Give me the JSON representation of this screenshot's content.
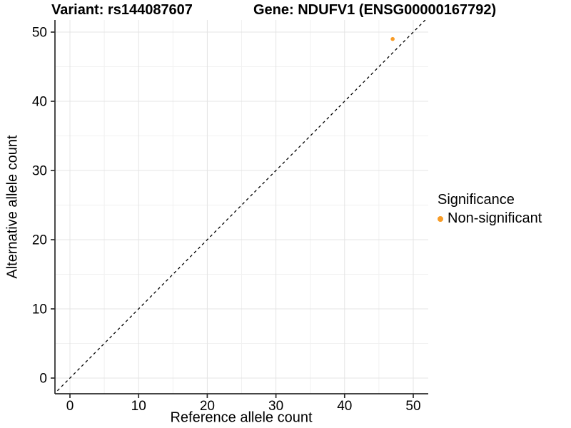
{
  "header": {
    "variant_title": "Variant: rs144087607",
    "gene_title": "Gene: NDUFV1 (ENSG00000167792)"
  },
  "chart_data": {
    "type": "scatter",
    "title": "Variant: rs144087607 — Gene: NDUFV1 (ENSG00000167792)",
    "xlabel": "Reference allele count",
    "ylabel": "Alternative allele count",
    "xlim": [
      -2.2,
      52.3
    ],
    "ylim": [
      -2.3,
      51.8
    ],
    "x_ticks": [
      0,
      10,
      20,
      30,
      40,
      50
    ],
    "y_ticks": [
      0,
      10,
      20,
      30,
      40,
      50
    ],
    "x_minor_ticks": [
      5,
      15,
      25,
      35,
      45
    ],
    "y_minor_ticks": [
      5,
      15,
      25,
      35,
      45
    ],
    "grid": "major and minor, light gray on white panel",
    "reference_line": {
      "type": "identity y=x",
      "style": "dashed",
      "color": "#000000"
    },
    "series": [
      {
        "name": "Non-significant",
        "color": "#F89C27",
        "points": [
          {
            "x": 47,
            "y": 49
          }
        ]
      }
    ],
    "legend": {
      "title": "Significance",
      "position": "right",
      "entries": [
        {
          "label": "Non-significant",
          "color": "#F89C27"
        }
      ]
    },
    "style_colors": {
      "axis_line": "#2b2b2b",
      "major_grid": "#e4e4e4",
      "minor_grid": "#f1f1f1",
      "text": "#000000"
    }
  }
}
